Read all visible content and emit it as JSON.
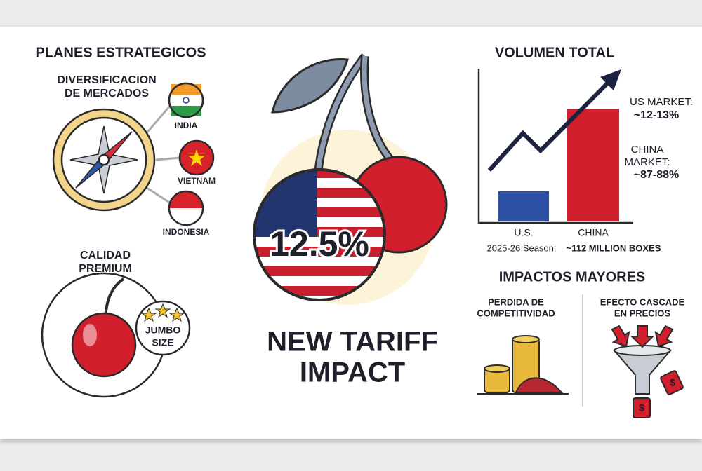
{
  "left": {
    "title": "PLANES ESTRATEGICOS",
    "diversification": [
      "DIVERSIFICACION",
      "DE MERCADOS"
    ],
    "markets": [
      "INDIA",
      "VIETNAM",
      "INDONESIA"
    ],
    "quality": [
      "CALIDAD",
      "PREMIUM"
    ],
    "badge": [
      "JUMBO",
      "SIZE"
    ]
  },
  "center": {
    "rate": "12.5%",
    "title": [
      "NEW TARIFF",
      "IMPACT"
    ]
  },
  "volume": {
    "title": "VOLUMEN TOTAL",
    "us_label": "US MARKET:",
    "us_share": "~12-13%",
    "china_label": [
      "CHINA",
      "MARKET:"
    ],
    "china_share": "~87-88%",
    "categories": [
      "U.S.",
      "CHINA"
    ],
    "season": "2025-26 Season:",
    "boxes": "~112 MILLION BOXES"
  },
  "impacts": {
    "title": "IMPACTOS MAYORES",
    "items": [
      [
        "PERDIDA DE",
        "COMPETITIVIDAD"
      ],
      [
        "EFECTO CASCADE",
        "EN PRECIOS"
      ]
    ],
    "tags": [
      "$",
      "$"
    ]
  }
}
